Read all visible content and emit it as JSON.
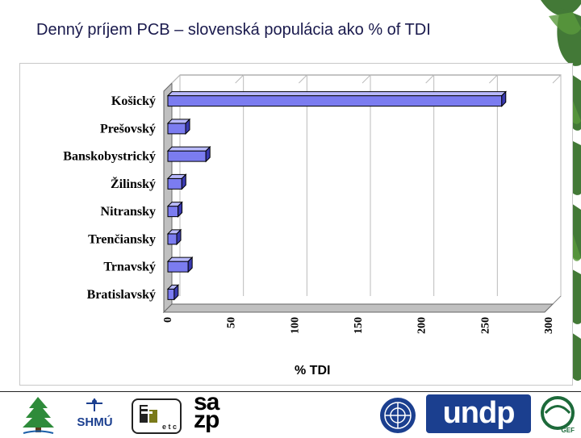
{
  "slide": {
    "title": "Denný príjem PCB – slovenská populácia ako % of TDI"
  },
  "chart_data": {
    "type": "bar",
    "orientation": "horizontal",
    "title": "",
    "xlabel": "% TDI",
    "ylabel": "",
    "categories": [
      "Košický",
      "Prešovský",
      "Banskobystrický",
      "Žilinský",
      "Nitransky",
      "Trenčiansky",
      "Trnavský",
      "Bratislavský"
    ],
    "values": [
      263,
      14,
      30,
      11,
      8,
      7,
      16,
      5
    ],
    "xlim": [
      0,
      300
    ],
    "xticks": [
      "0",
      "50",
      "100",
      "150",
      "200",
      "250",
      "300"
    ],
    "grid": "vertical",
    "legend": "none",
    "bar_color": "#7b7cf0",
    "bar_top_color": "#b9baff",
    "bar_side_color": "#3a3ab0",
    "wall_color": "#c0c0c0"
  },
  "logos": {
    "shmu_text": "SHMÚ",
    "sazp_text_top": "sa",
    "sazp_text_bottom": "zp",
    "undp_text": "undp",
    "gef_text": "GEF",
    "etc_text": "e t c"
  },
  "colors": {
    "title": "#1a1a4d",
    "leaf": "#2f6b22"
  }
}
